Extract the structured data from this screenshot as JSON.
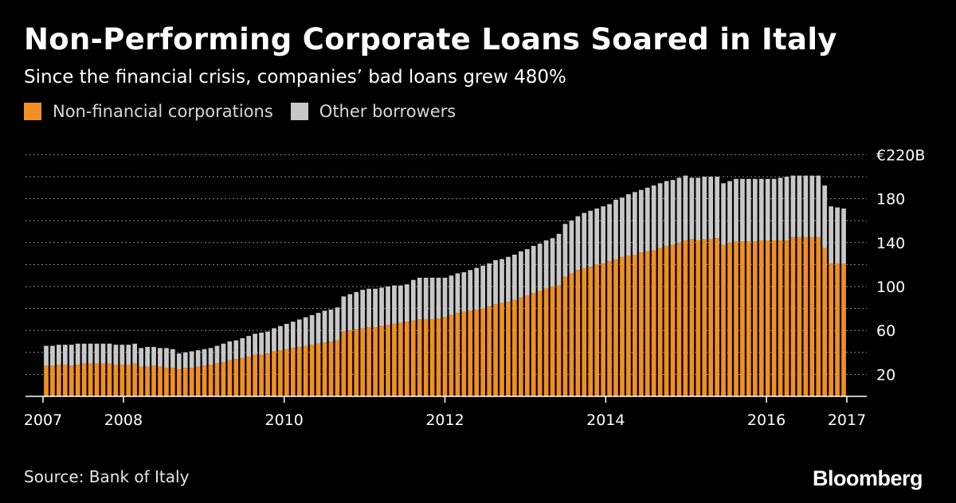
{
  "header": {
    "title": "Non-Performing Corporate Loans Soared in Italy",
    "subtitle": "Since the financial crisis, companies’ bad loans grew 480%"
  },
  "legend": {
    "items": [
      {
        "label": "Non-financial corporations",
        "color": "#f08f23"
      },
      {
        "label": "Other borrowers",
        "color": "#c8c8c8"
      }
    ]
  },
  "footer": {
    "source": "Source: Bank of Italy",
    "brand": "Bloomberg"
  },
  "chart_data": {
    "type": "bar",
    "stacked": true,
    "title": "Non-Performing Corporate Loans Soared in Italy",
    "subtitle": "Since the financial crisis, companies’ bad loans grew 480%",
    "unit_label": "€220B",
    "x_range": [
      2007.0,
      2017.0
    ],
    "ylim": [
      0,
      220
    ],
    "y_ticks": [
      20,
      60,
      100,
      140,
      180,
      220
    ],
    "y_tick_labels": [
      "20",
      "60",
      "100",
      "140",
      "180",
      "€220B"
    ],
    "y_grid_dotted": [
      20,
      40,
      60,
      80,
      100,
      120,
      140,
      160,
      180,
      200,
      220
    ],
    "x_ticks": [
      2007,
      2008,
      2010,
      2012,
      2014,
      2016,
      2017
    ],
    "x_tick_labels": [
      "2007",
      "2008",
      "2010",
      "2012",
      "2014",
      "2016",
      "2017"
    ],
    "grid": true,
    "legend_position": "top-left",
    "series": [
      {
        "name": "Non-financial corporations",
        "color": "#f08f23",
        "values": [
          28,
          28,
          29,
          29,
          28,
          29,
          30,
          30,
          30,
          30,
          30,
          29,
          29,
          29,
          30,
          27,
          27,
          28,
          27,
          26,
          26,
          25,
          26,
          26,
          27,
          28,
          29,
          30,
          31,
          33,
          34,
          35,
          36,
          38,
          38,
          39,
          41,
          42,
          43,
          44,
          45,
          46,
          47,
          48,
          49,
          50,
          51,
          59,
          60,
          61,
          62,
          63,
          63,
          64,
          65,
          66,
          67,
          68,
          69,
          70,
          70,
          70,
          71,
          72,
          74,
          76,
          77,
          78,
          79,
          80,
          82,
          84,
          85,
          86,
          88,
          90,
          92,
          94,
          96,
          98,
          100,
          101,
          109,
          112,
          115,
          117,
          118,
          120,
          121,
          123,
          125,
          127,
          128,
          129,
          131,
          132,
          133,
          135,
          137,
          138,
          140,
          142,
          143,
          142,
          143,
          143,
          144,
          138,
          140,
          141,
          141,
          141,
          141,
          142,
          142,
          142,
          142,
          142,
          145,
          145,
          145,
          145,
          145,
          135,
          121,
          121,
          121
        ]
      },
      {
        "name": "Other borrowers",
        "color": "#c8c8c8",
        "values": [
          18,
          18,
          18,
          18,
          19,
          19,
          18,
          18,
          18,
          18,
          18,
          18,
          18,
          18,
          18,
          17,
          18,
          17,
          17,
          18,
          17,
          14,
          14,
          15,
          15,
          15,
          15,
          16,
          17,
          17,
          17,
          18,
          19,
          19,
          20,
          20,
          21,
          22,
          23,
          24,
          25,
          26,
          27,
          28,
          29,
          29,
          30,
          32,
          33,
          34,
          35,
          35,
          35,
          35,
          35,
          35,
          34,
          34,
          37,
          38,
          38,
          38,
          37,
          36,
          36,
          36,
          36,
          37,
          38,
          39,
          39,
          40,
          40,
          41,
          41,
          42,
          42,
          43,
          43,
          44,
          44,
          47,
          48,
          48,
          49,
          50,
          51,
          51,
          52,
          52,
          54,
          54,
          56,
          57,
          57,
          58,
          59,
          59,
          59,
          59,
          59,
          59,
          56,
          57,
          57,
          57,
          56,
          56,
          56,
          57,
          57,
          57,
          57,
          56,
          56,
          56,
          57,
          58,
          56,
          56,
          56,
          56,
          56,
          57,
          52,
          51,
          50
        ]
      }
    ]
  }
}
